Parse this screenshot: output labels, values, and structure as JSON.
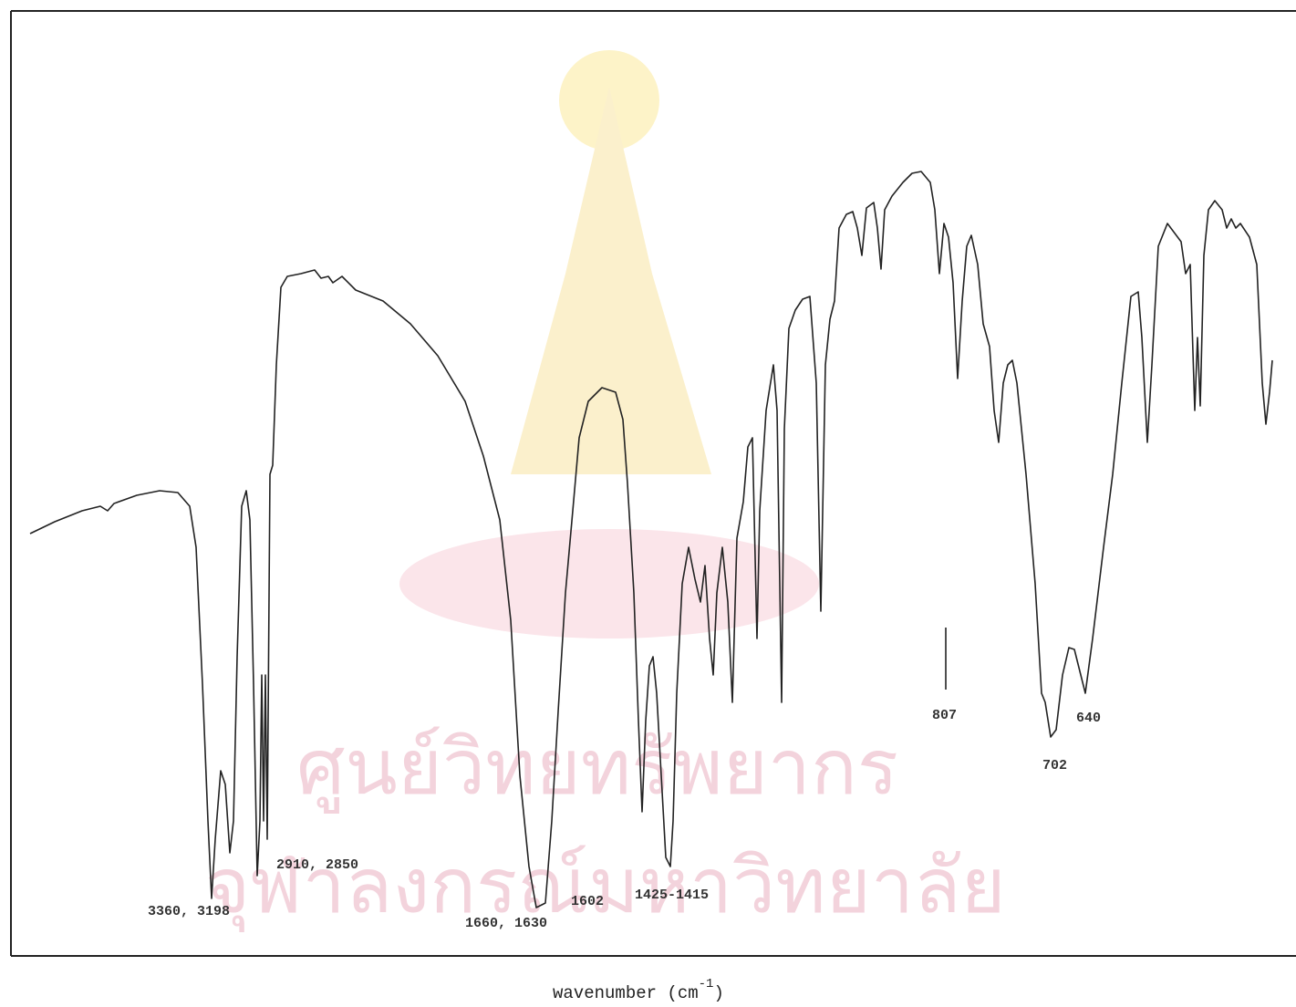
{
  "figure": {
    "watermark": [
      "ศูนย์วิทยทรัพยากร",
      "จุฬาลงกรณ์มหาวิทยาลัย"
    ],
    "peak_labels": [
      "3360, 3198",
      "2910, 2850",
      "1660, 1630",
      "1602",
      "1425-1415",
      "807",
      "702",
      "640"
    ],
    "x_axis_label": {
      "text": "wavenumber (cm",
      "superscript": "-1",
      "close": ")"
    }
  }
}
